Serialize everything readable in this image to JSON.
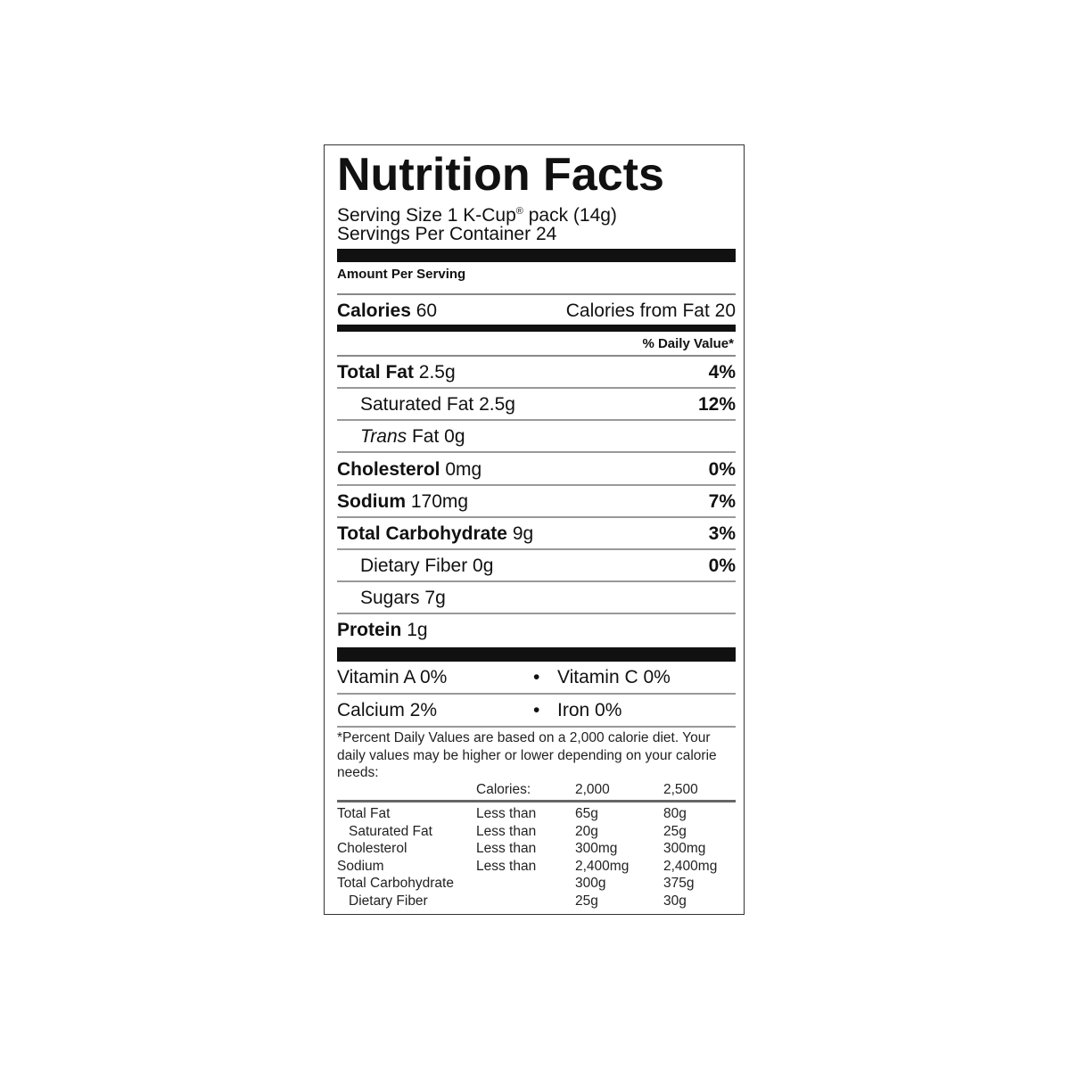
{
  "title": "Nutrition Facts",
  "serving_size_prefix": "Serving Size 1 K-Cup",
  "serving_size_mark": "®",
  "serving_size_suffix": " pack (14g)",
  "servings_per_container": "Servings Per Container 24",
  "amount_per_serving": "Amount Per Serving",
  "calories": {
    "label": "Calories",
    "value": "60",
    "from_fat": "Calories from Fat 20"
  },
  "daily_value_header": "% Daily Value*",
  "nutrients": [
    {
      "name": "Total Fat",
      "amount": "2.5g",
      "pct": "4%"
    },
    {
      "name": "Saturated Fat",
      "amount": "2.5g",
      "pct": "12%"
    },
    {
      "name": "Trans",
      "name_suffix": "Fat",
      "amount": "0g",
      "pct": ""
    },
    {
      "name": "Cholesterol",
      "amount": "0mg",
      "pct": "0%"
    },
    {
      "name": "Sodium",
      "amount": "170mg",
      "pct": "7%"
    },
    {
      "name": "Total Carbohydrate",
      "amount": "9g",
      "pct": "3%"
    },
    {
      "name": "Dietary Fiber",
      "amount": "0g",
      "pct": "0%"
    },
    {
      "name": "Sugars",
      "amount": "7g",
      "pct": ""
    },
    {
      "name": "Protein",
      "amount": "1g",
      "pct": ""
    }
  ],
  "vitamins": [
    {
      "left": "Vitamin A 0%",
      "right": "Vitamin C 0%"
    },
    {
      "left": "Calcium 2%",
      "right": "Iron 0%"
    }
  ],
  "bullet": "•",
  "footnote": "*Percent Daily Values are based on a 2,000 calorie diet. Your daily values may be higher or lower depending on your calorie needs:",
  "reference_table": {
    "header": [
      "",
      "Calories:",
      "2,000",
      "2,500"
    ],
    "rows": [
      [
        "Total Fat",
        "Less than",
        "65g",
        "80g"
      ],
      [
        "Saturated Fat",
        "Less than",
        "20g",
        "25g"
      ],
      [
        "Cholesterol",
        "Less than",
        "300mg",
        "300mg"
      ],
      [
        "Sodium",
        "Less than",
        "2,400mg",
        "2,400mg"
      ],
      [
        "Total Carbohydrate",
        "",
        "300g",
        "375g"
      ],
      [
        "Dietary Fiber",
        "",
        "25g",
        "30g"
      ]
    ]
  }
}
